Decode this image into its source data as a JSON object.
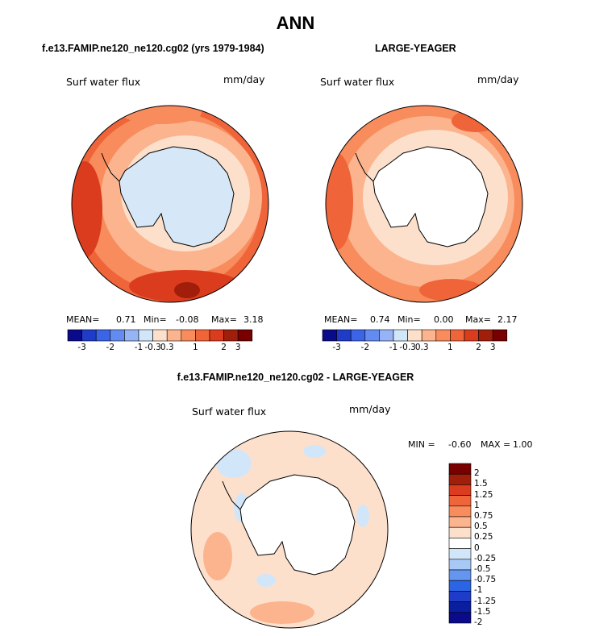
{
  "title": "ANN",
  "panels": [
    {
      "heading": "f.e13.FAMIP.ne120_ne120.cg02 (yrs 1979-1984)",
      "variable": "Surf water flux",
      "units": "mm/day",
      "mean_label": "MEAN=",
      "mean_value": "0.71",
      "min_label": "Min=",
      "min_value": "-0.08",
      "max_label": "Max=",
      "max_value": "3.18",
      "colorbar_ticks": [
        "-3",
        "-2",
        "-1",
        "-0.3",
        "0.3",
        "1",
        "2",
        "3"
      ]
    },
    {
      "heading": "LARGE-YEAGER",
      "variable": "Surf water flux",
      "units": "mm/day",
      "mean_label": "MEAN=",
      "mean_value": "0.74",
      "min_label": "Min=",
      "min_value": "0.00",
      "max_label": "Max=",
      "max_value": "2.17",
      "colorbar_ticks": [
        "-3",
        "-2",
        "-1",
        "-0.3",
        "0.3",
        "1",
        "2",
        "3"
      ]
    }
  ],
  "difference": {
    "heading": "f.e13.FAMIP.ne120_ne120.cg02 - LARGE-YEAGER",
    "variable": "Surf water flux",
    "units": "mm/day",
    "min_label": "MIN =",
    "min_value": "-0.60",
    "max_label": "MAX =",
    "max_value": "1.00",
    "colorbar_ticks": [
      "2",
      "1.5",
      "1.25",
      "1",
      "0.75",
      "0.5",
      "0.25",
      "0",
      "-0.25",
      "-0.5",
      "-0.75",
      "-1",
      "-1.25",
      "-1.5",
      "-2"
    ]
  },
  "colors": {
    "levels_12": [
      "#0a0a8a",
      "#1e3cc8",
      "#3c64e6",
      "#648cf0",
      "#96b4f5",
      "#d2e6fa",
      "#fde0cc",
      "#fbb48e",
      "#f88c5c",
      "#f0643a",
      "#dc3c1e",
      "#a01e0a",
      "#780000"
    ],
    "diff_levels": [
      "#780000",
      "#a01e0a",
      "#dc3c1e",
      "#f0643a",
      "#f88c5c",
      "#fbb48e",
      "#fde0cc",
      "#ffffff",
      "#d2e6fa",
      "#a8c8f5",
      "#6496f0",
      "#2c64e6",
      "#1e3cc8",
      "#0a1ea0",
      "#0a0a8a"
    ],
    "antarctica_panel1": "#d6e8f8",
    "land": "#ffffff",
    "ocean_background": "#fde0cc"
  }
}
